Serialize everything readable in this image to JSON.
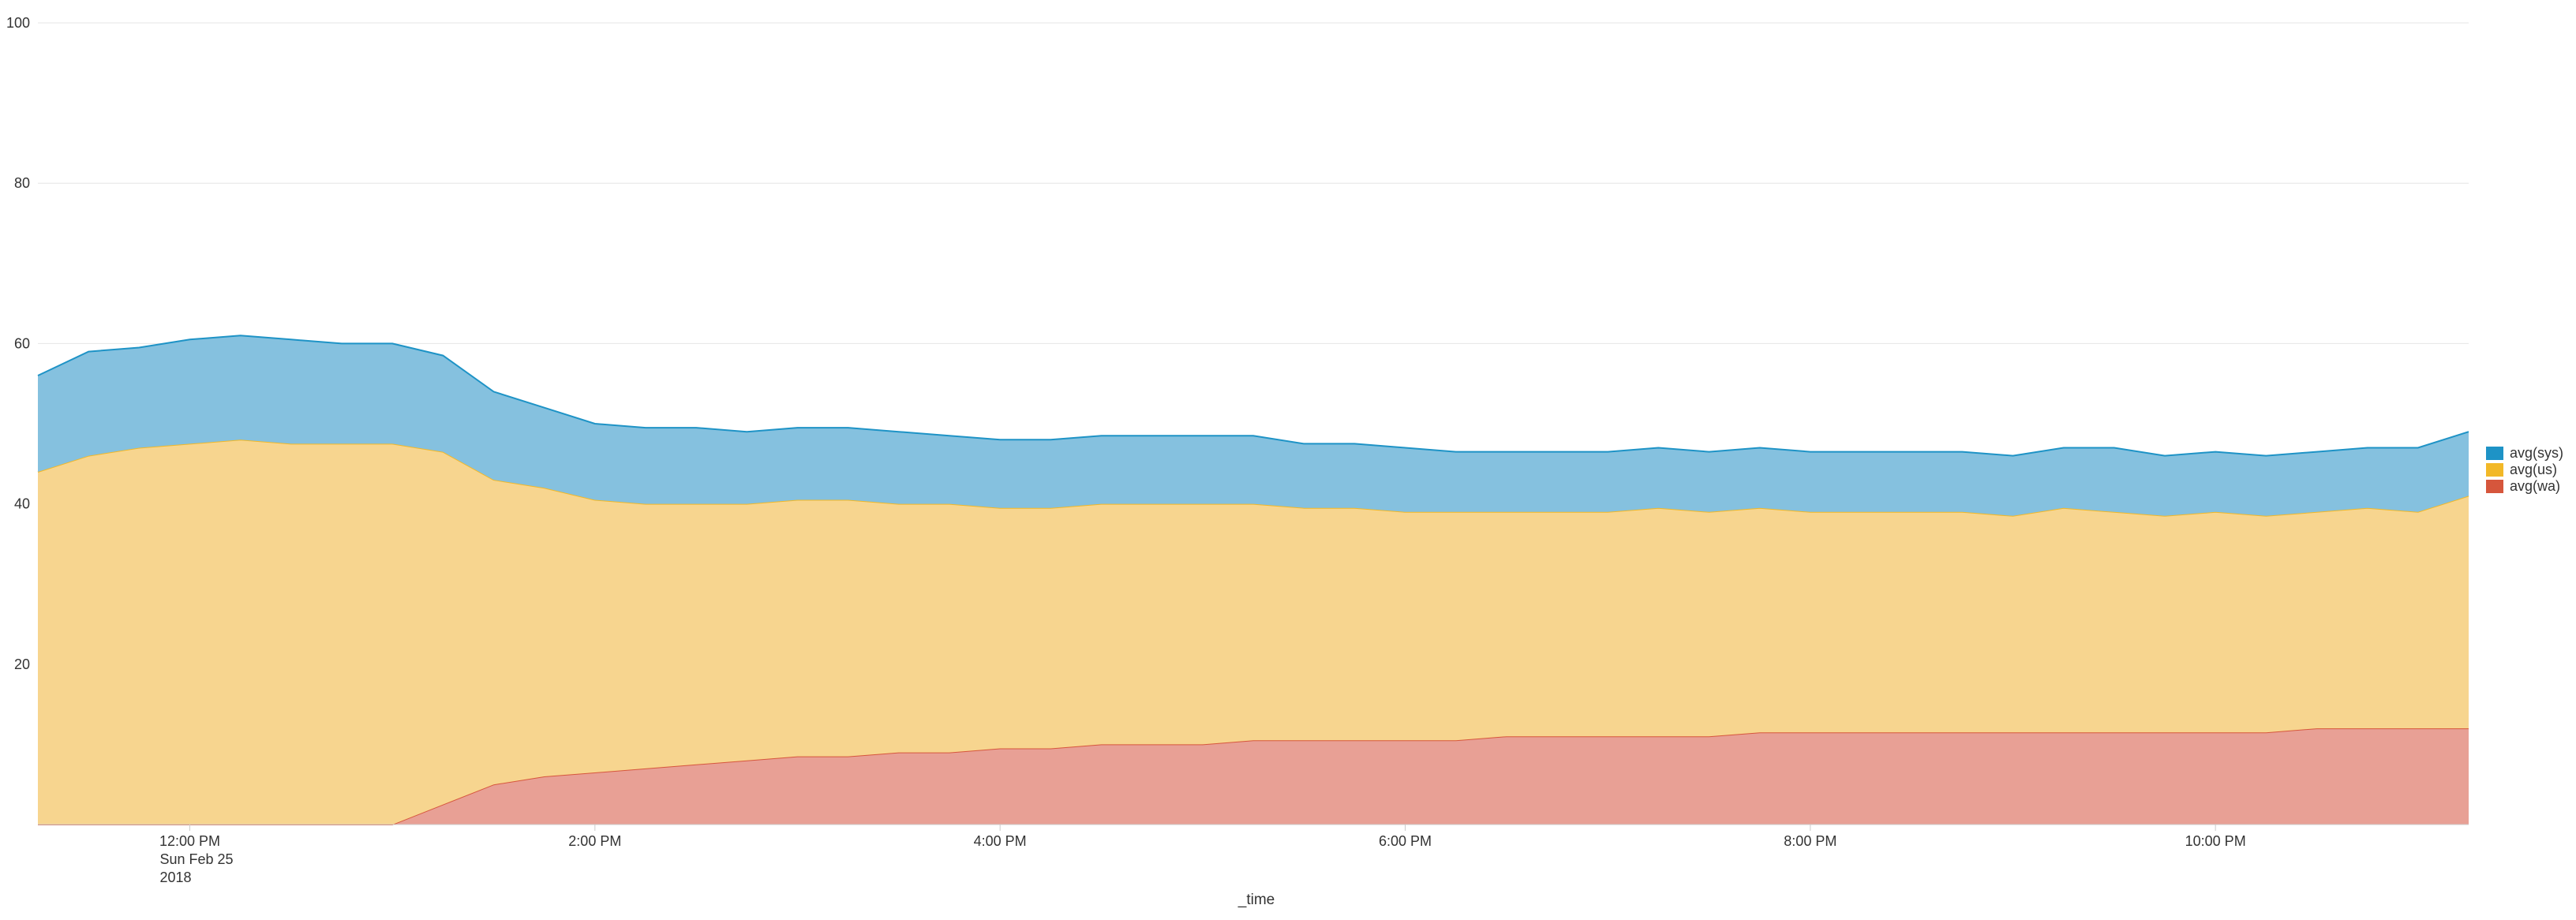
{
  "chart_data": {
    "type": "area",
    "stacked": true,
    "title": "",
    "xlabel": "_time",
    "ylabel": "",
    "ylim": [
      0,
      100
    ],
    "y_ticks": [
      100,
      80,
      60,
      40,
      20
    ],
    "grid": true,
    "legend_position": "right",
    "x_range": [
      "2018-02-25 11:15",
      "2018-02-25 23:15"
    ],
    "x_ticks": [
      {
        "time": "2018-02-25 12:00",
        "label": "12:00 PM",
        "sublabel1": "Sun Feb 25",
        "sublabel2": "2018"
      },
      {
        "time": "2018-02-25 14:00",
        "label": "2:00 PM"
      },
      {
        "time": "2018-02-25 16:00",
        "label": "4:00 PM"
      },
      {
        "time": "2018-02-25 18:00",
        "label": "6:00 PM"
      },
      {
        "time": "2018-02-25 20:00",
        "label": "8:00 PM"
      },
      {
        "time": "2018-02-25 22:00",
        "label": "10:00 PM"
      }
    ],
    "x": [
      "2018-02-25 11:15",
      "2018-02-25 11:30",
      "2018-02-25 11:45",
      "2018-02-25 12:00",
      "2018-02-25 12:15",
      "2018-02-25 12:30",
      "2018-02-25 12:45",
      "2018-02-25 13:00",
      "2018-02-25 13:15",
      "2018-02-25 13:30",
      "2018-02-25 13:45",
      "2018-02-25 14:00",
      "2018-02-25 14:15",
      "2018-02-25 14:30",
      "2018-02-25 14:45",
      "2018-02-25 15:00",
      "2018-02-25 15:15",
      "2018-02-25 15:30",
      "2018-02-25 15:45",
      "2018-02-25 16:00",
      "2018-02-25 16:15",
      "2018-02-25 16:30",
      "2018-02-25 16:45",
      "2018-02-25 17:00",
      "2018-02-25 17:15",
      "2018-02-25 17:30",
      "2018-02-25 17:45",
      "2018-02-25 18:00",
      "2018-02-25 18:15",
      "2018-02-25 18:30",
      "2018-02-25 18:45",
      "2018-02-25 19:00",
      "2018-02-25 19:15",
      "2018-02-25 19:30",
      "2018-02-25 19:45",
      "2018-02-25 20:00",
      "2018-02-25 20:15",
      "2018-02-25 20:30",
      "2018-02-25 20:45",
      "2018-02-25 21:00",
      "2018-02-25 21:15",
      "2018-02-25 21:30",
      "2018-02-25 21:45",
      "2018-02-25 22:00",
      "2018-02-25 22:15",
      "2018-02-25 22:30",
      "2018-02-25 22:45",
      "2018-02-25 23:00",
      "2018-02-25 23:15"
    ],
    "series": [
      {
        "name": "avg(sys)",
        "color": "#1e93c6",
        "fill": "#85c1df",
        "values": [
          12.0,
          13.0,
          12.5,
          13.0,
          13.0,
          13.0,
          12.5,
          12.5,
          12.0,
          11.0,
          10.0,
          9.5,
          9.5,
          9.5,
          9.0,
          9.0,
          9.0,
          9.0,
          8.5,
          8.5,
          8.5,
          8.5,
          8.5,
          8.5,
          8.5,
          8.0,
          8.0,
          8.0,
          7.5,
          7.5,
          7.5,
          7.5,
          7.5,
          7.5,
          7.5,
          7.5,
          7.5,
          7.5,
          7.5,
          7.5,
          7.5,
          8.0,
          7.5,
          7.5,
          7.5,
          7.5,
          7.5,
          8.0,
          8.0
        ]
      },
      {
        "name": "avg(us)",
        "color": "#f2b827",
        "fill": "#f7d58f",
        "values": [
          44.0,
          46.0,
          47.0,
          47.5,
          48.0,
          47.5,
          47.5,
          47.5,
          44.0,
          38.0,
          36.0,
          34.0,
          33.0,
          32.5,
          32.0,
          32.0,
          32.0,
          31.0,
          31.0,
          30.0,
          30.0,
          30.0,
          30.0,
          30.0,
          29.5,
          29.0,
          29.0,
          28.5,
          28.5,
          28.0,
          28.0,
          28.0,
          28.5,
          28.0,
          28.0,
          27.5,
          27.5,
          27.5,
          27.5,
          27.0,
          28.0,
          27.5,
          27.0,
          27.5,
          27.0,
          27.0,
          27.5,
          27.0,
          29.0
        ]
      },
      {
        "name": "avg(wa)",
        "color": "#d6563c",
        "fill": "#e8a095",
        "values": [
          0.0,
          0.0,
          0.0,
          0.0,
          0.0,
          0.0,
          0.0,
          0.0,
          2.5,
          5.0,
          6.0,
          6.5,
          7.0,
          7.5,
          8.0,
          8.5,
          8.5,
          9.0,
          9.0,
          9.5,
          9.5,
          10.0,
          10.0,
          10.0,
          10.5,
          10.5,
          10.5,
          10.5,
          10.5,
          11.0,
          11.0,
          11.0,
          11.0,
          11.0,
          11.5,
          11.5,
          11.5,
          11.5,
          11.5,
          11.5,
          11.5,
          11.5,
          11.5,
          11.5,
          11.5,
          12.0,
          12.0,
          12.0,
          12.0
        ]
      }
    ]
  }
}
